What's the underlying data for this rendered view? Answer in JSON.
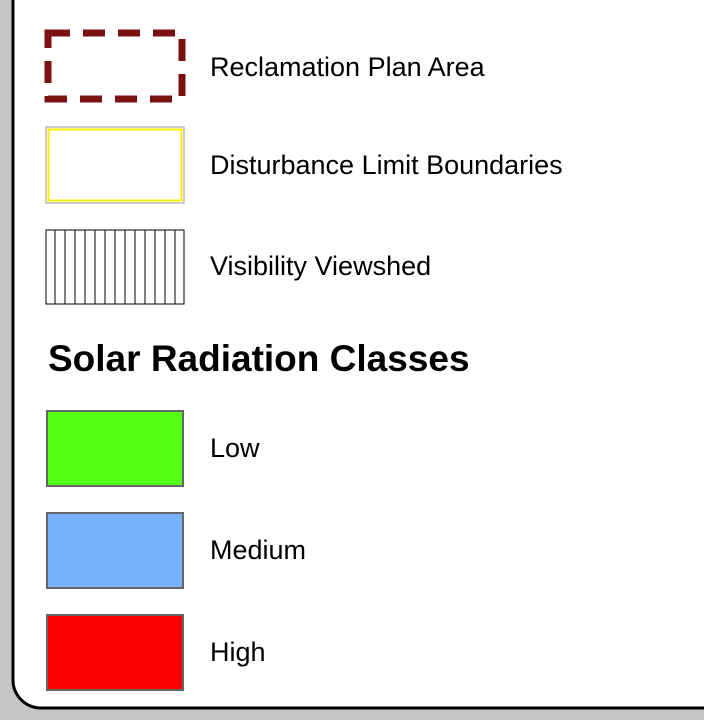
{
  "legend": {
    "items": [
      {
        "label": "Reclamation Plan Area"
      },
      {
        "label": "Disturbance Limit Boundaries"
      },
      {
        "label": "Visibility Viewshed"
      }
    ],
    "heading": "Solar Radiation Classes",
    "classes": [
      {
        "label": "Low",
        "color": "#55ff11"
      },
      {
        "label": "Medium",
        "color": "#77b2ff"
      },
      {
        "label": "High",
        "color": "#ff0000"
      }
    ]
  }
}
